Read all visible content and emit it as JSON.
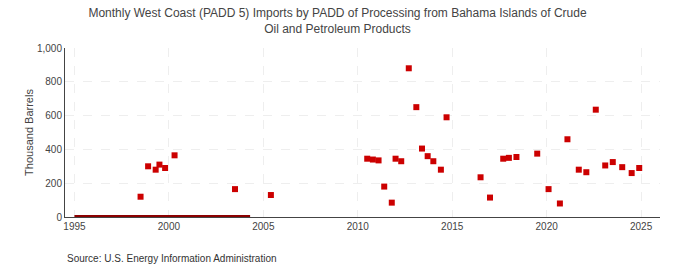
{
  "chart_data": {
    "type": "scatter",
    "title": "Monthly West Coast (PADD 5) Imports by PADD of Processing from Bahama Islands of Crude\nOil and Petroleum Products",
    "ylabel": "Thousand Barrels",
    "annotations": [
      "Source: U.S. Energy Information Administration"
    ],
    "xlim": [
      1994.5,
      2026
    ],
    "ylim": [
      0,
      1000
    ],
    "xticks": [
      1995,
      2000,
      2005,
      2010,
      2015,
      2020,
      2025
    ],
    "yticks": [
      0,
      200,
      400,
      600,
      800,
      {
        "value": 1000,
        "label": "1,000"
      }
    ],
    "grid": true,
    "series": [
      {
        "type": "area",
        "color": "#8b0000",
        "x": [
          1995.0,
          2004.3
        ],
        "values": [
          12,
          12
        ]
      },
      {
        "type": "scatter",
        "color": "#cc0000",
        "marker": "square",
        "x": [
          1998.5,
          1998.9,
          1999.3,
          1999.5,
          1999.8,
          2000.3,
          2003.5,
          2005.4,
          2010.5,
          2010.8,
          2011.1,
          2011.4,
          2011.8,
          2012.0,
          2012.3,
          2012.7,
          2013.1,
          2013.4,
          2013.7,
          2014.0,
          2014.4,
          2014.7,
          2016.5,
          2017.0,
          2017.7,
          2018.0,
          2018.4,
          2019.5,
          2020.1,
          2020.7,
          2021.1,
          2021.7,
          2022.1,
          2022.6,
          2023.1,
          2023.5,
          2024.0,
          2024.5,
          2024.9
        ],
        "values": [
          120,
          300,
          280,
          310,
          290,
          365,
          165,
          130,
          345,
          340,
          335,
          180,
          85,
          345,
          330,
          880,
          650,
          405,
          360,
          330,
          280,
          590,
          235,
          115,
          345,
          350,
          355,
          375,
          165,
          80,
          460,
          280,
          265,
          635,
          305,
          325,
          295,
          260,
          290
        ]
      }
    ]
  }
}
